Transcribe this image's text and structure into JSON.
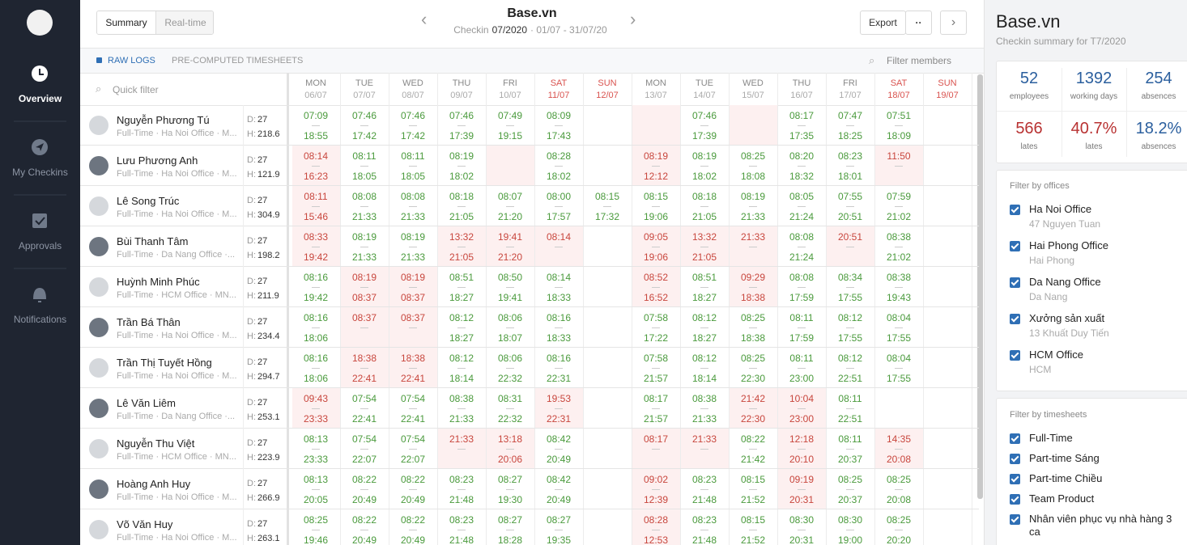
{
  "sidebar": {
    "nav": [
      "Overview",
      "My Checkins",
      "Approvals",
      "Notifications"
    ]
  },
  "header": {
    "toggle": [
      "Summary",
      "Real-time"
    ],
    "title": "Base.vn",
    "subtitle": {
      "prefix": "Checkin",
      "month": "07/2020",
      "range": "· 01/07 - 31/07/20"
    },
    "export": "Export",
    "more": "··"
  },
  "tabs": {
    "items": [
      "RAW LOGS",
      "PRE-COMPUTED TIMESHEETS"
    ],
    "search": "Filter members",
    "quick_filter": "Quick filter"
  },
  "status_colors": {
    "ok": "#4a9a3c",
    "late": "#c8463d"
  },
  "days": [
    {
      "day": "MON",
      "date": "06/07"
    },
    {
      "day": "TUE",
      "date": "07/07"
    },
    {
      "day": "WED",
      "date": "08/07"
    },
    {
      "day": "THU",
      "date": "09/07"
    },
    {
      "day": "FRI",
      "date": "10/07"
    },
    {
      "day": "SAT",
      "date": "11/07",
      "color": "#d9534f"
    },
    {
      "day": "SUN",
      "date": "12/07",
      "color": "#d9534f"
    },
    {
      "day": "MON",
      "date": "13/07"
    },
    {
      "day": "TUE",
      "date": "14/07"
    },
    {
      "day": "WED",
      "date": "15/07"
    },
    {
      "day": "THU",
      "date": "16/07"
    },
    {
      "day": "FRI",
      "date": "17/07"
    },
    {
      "day": "SAT",
      "date": "18/07",
      "color": "#d9534f"
    },
    {
      "day": "SUN",
      "date": "19/07",
      "color": "#d9534f"
    }
  ],
  "labels": {
    "d": "D:",
    "h": "H:"
  },
  "rows": [
    {
      "name": "Nguyễn Phương Tú",
      "sub": "Full-Time · Ha Noi Office · M...",
      "d": 27,
      "h": 218.6,
      "cells": [
        [
          "07:09",
          "18:55",
          "ok"
        ],
        [
          "07:46",
          "17:42",
          "ok"
        ],
        [
          "07:46",
          "17:42",
          "ok"
        ],
        [
          "07:46",
          "17:39",
          "ok"
        ],
        [
          "07:49",
          "19:15",
          "ok"
        ],
        [
          "08:09",
          "17:43",
          "ok"
        ],
        null,
        [
          null,
          null,
          "late"
        ],
        [
          "07:46",
          "17:39",
          "ok"
        ],
        [
          null,
          null,
          "late"
        ],
        [
          "08:17",
          "17:35",
          "ok"
        ],
        [
          "07:47",
          "18:25",
          "ok"
        ],
        [
          "07:51",
          "18:09",
          "ok"
        ],
        null
      ]
    },
    {
      "name": "Lưu Phương Anh",
      "sub": "Full-Time · Ha Noi Office · M...",
      "d": 27,
      "h": 121.9,
      "cells": [
        [
          "08:14",
          "16:23",
          "late"
        ],
        [
          "08:11",
          "18:05",
          "ok"
        ],
        [
          "08:11",
          "18:05",
          "ok"
        ],
        [
          "08:19",
          "18:02",
          "ok"
        ],
        [
          null,
          null,
          "late"
        ],
        [
          "08:28",
          "18:02",
          "ok"
        ],
        null,
        [
          "08:19",
          "12:12",
          "late"
        ],
        [
          "08:19",
          "18:02",
          "ok"
        ],
        [
          "08:25",
          "18:08",
          "ok"
        ],
        [
          "08:20",
          "18:32",
          "ok"
        ],
        [
          "08:23",
          "18:01",
          "ok"
        ],
        [
          "11:50",
          null,
          "late"
        ],
        null
      ]
    },
    {
      "name": "Lê Song Trúc",
      "sub": "Full-Time · Ha Noi Office · M...",
      "d": 27,
      "h": 304.9,
      "cells": [
        [
          "08:11",
          "15:46",
          "late"
        ],
        [
          "08:08",
          "21:33",
          "ok"
        ],
        [
          "08:08",
          "21:33",
          "ok"
        ],
        [
          "08:18",
          "21:05",
          "ok"
        ],
        [
          "08:07",
          "21:20",
          "ok"
        ],
        [
          "08:00",
          "17:57",
          "ok"
        ],
        [
          "08:15",
          "17:32",
          "ok"
        ],
        [
          "08:15",
          "19:06",
          "ok"
        ],
        [
          "08:18",
          "21:05",
          "ok"
        ],
        [
          "08:19",
          "21:33",
          "ok"
        ],
        [
          "08:05",
          "21:24",
          "ok"
        ],
        [
          "07:55",
          "20:51",
          "ok"
        ],
        [
          "07:59",
          "21:02",
          "ok"
        ],
        null
      ]
    },
    {
      "name": "Bùi Thanh Tâm",
      "sub": "Full-Time · Da Nang Office ·...",
      "d": 27,
      "h": 198.2,
      "cells": [
        [
          "08:33",
          "19:42",
          "late"
        ],
        [
          "08:19",
          "21:33",
          "ok"
        ],
        [
          "08:19",
          "21:33",
          "ok"
        ],
        [
          "13:32",
          "21:05",
          "late"
        ],
        [
          "19:41",
          "21:20",
          "late"
        ],
        [
          "08:14",
          null,
          "late"
        ],
        null,
        [
          "09:05",
          "19:06",
          "late"
        ],
        [
          "13:32",
          "21:05",
          "late"
        ],
        [
          "21:33",
          null,
          "late"
        ],
        [
          "08:08",
          "21:24",
          "ok"
        ],
        [
          "20:51",
          null,
          "late"
        ],
        [
          "08:38",
          "21:02",
          "ok"
        ],
        null
      ]
    },
    {
      "name": "Huỳnh Minh Phúc",
      "sub": "Full-Time · HCM Office · MN...",
      "d": 27,
      "h": 211.9,
      "cells": [
        [
          "08:16",
          "19:42",
          "ok"
        ],
        [
          "08:19",
          "08:37",
          "late"
        ],
        [
          "08:19",
          "08:37",
          "late"
        ],
        [
          "08:51",
          "18:27",
          "ok"
        ],
        [
          "08:50",
          "19:41",
          "ok"
        ],
        [
          "08:14",
          "18:33",
          "ok"
        ],
        null,
        [
          "08:52",
          "16:52",
          "late"
        ],
        [
          "08:51",
          "18:27",
          "ok"
        ],
        [
          "09:29",
          "18:38",
          "late"
        ],
        [
          "08:08",
          "17:59",
          "ok"
        ],
        [
          "08:34",
          "17:55",
          "ok"
        ],
        [
          "08:38",
          "19:43",
          "ok"
        ],
        null
      ]
    },
    {
      "name": "Trần Bá Thân",
      "sub": "Full-Time · Ha Noi Office · M...",
      "d": 27,
      "h": 234.4,
      "cells": [
        [
          "08:16",
          "18:06",
          "ok"
        ],
        [
          "08:37",
          null,
          "late"
        ],
        [
          "08:37",
          null,
          "late"
        ],
        [
          "08:12",
          "18:27",
          "ok"
        ],
        [
          "08:06",
          "18:07",
          "ok"
        ],
        [
          "08:16",
          "18:33",
          "ok"
        ],
        null,
        [
          "07:58",
          "17:22",
          "ok"
        ],
        [
          "08:12",
          "18:27",
          "ok"
        ],
        [
          "08:25",
          "18:38",
          "ok"
        ],
        [
          "08:11",
          "17:59",
          "ok"
        ],
        [
          "08:12",
          "17:55",
          "ok"
        ],
        [
          "08:04",
          "17:55",
          "ok"
        ],
        null
      ]
    },
    {
      "name": "Trần Thị Tuyết Hồng",
      "sub": "Full-Time · Ha Noi Office · M...",
      "d": 27,
      "h": 294.7,
      "cells": [
        [
          "08:16",
          "18:06",
          "ok"
        ],
        [
          "18:38",
          "22:41",
          "late"
        ],
        [
          "18:38",
          "22:41",
          "late"
        ],
        [
          "08:12",
          "18:14",
          "ok"
        ],
        [
          "08:06",
          "22:32",
          "ok"
        ],
        [
          "08:16",
          "22:31",
          "ok"
        ],
        null,
        [
          "07:58",
          "21:57",
          "ok"
        ],
        [
          "08:12",
          "18:14",
          "ok"
        ],
        [
          "08:25",
          "22:30",
          "ok"
        ],
        [
          "08:11",
          "23:00",
          "ok"
        ],
        [
          "08:12",
          "22:51",
          "ok"
        ],
        [
          "08:04",
          "17:55",
          "ok"
        ],
        null
      ]
    },
    {
      "name": "Lê Văn Liêm",
      "sub": "Full-Time · Da Nang Office ·...",
      "d": 27,
      "h": 253.1,
      "cells": [
        [
          "09:43",
          "23:33",
          "late"
        ],
        [
          "07:54",
          "22:41",
          "ok"
        ],
        [
          "07:54",
          "22:41",
          "ok"
        ],
        [
          "08:38",
          "21:33",
          "ok"
        ],
        [
          "08:31",
          "22:32",
          "ok"
        ],
        [
          "19:53",
          "22:31",
          "late"
        ],
        null,
        [
          "08:17",
          "21:57",
          "ok"
        ],
        [
          "08:38",
          "21:33",
          "ok"
        ],
        [
          "21:42",
          "22:30",
          "late"
        ],
        [
          "10:04",
          "23:00",
          "late"
        ],
        [
          "08:11",
          "22:51",
          "ok"
        ],
        null,
        null
      ]
    },
    {
      "name": "Nguyễn Thu Việt",
      "sub": "Full-Time · HCM Office · MN...",
      "d": 27,
      "h": 223.9,
      "cells": [
        [
          "08:13",
          "23:33",
          "ok"
        ],
        [
          "07:54",
          "22:07",
          "ok"
        ],
        [
          "07:54",
          "22:07",
          "ok"
        ],
        [
          "21:33",
          null,
          "late"
        ],
        [
          "13:18",
          "20:06",
          "late"
        ],
        [
          "08:42",
          "20:49",
          "ok"
        ],
        null,
        [
          "08:17",
          null,
          "late"
        ],
        [
          "21:33",
          null,
          "late"
        ],
        [
          "08:22",
          "21:42",
          "ok"
        ],
        [
          "12:18",
          "20:10",
          "late"
        ],
        [
          "08:11",
          "20:37",
          "ok"
        ],
        [
          "14:35",
          "20:08",
          "late"
        ],
        null
      ]
    },
    {
      "name": "Hoàng Anh Huy",
      "sub": "Full-Time · Ha Noi Office · M...",
      "d": 27,
      "h": 266.9,
      "cells": [
        [
          "08:13",
          "20:05",
          "ok"
        ],
        [
          "08:22",
          "20:49",
          "ok"
        ],
        [
          "08:22",
          "20:49",
          "ok"
        ],
        [
          "08:23",
          "21:48",
          "ok"
        ],
        [
          "08:27",
          "19:30",
          "ok"
        ],
        [
          "08:42",
          "20:49",
          "ok"
        ],
        null,
        [
          "09:02",
          "12:39",
          "late"
        ],
        [
          "08:23",
          "21:48",
          "ok"
        ],
        [
          "08:15",
          "21:52",
          "ok"
        ],
        [
          "09:19",
          "20:31",
          "late"
        ],
        [
          "08:25",
          "20:37",
          "ok"
        ],
        [
          "08:25",
          "20:08",
          "ok"
        ],
        null
      ]
    },
    {
      "name": "Võ Văn Huy",
      "sub": "Full-Time · Ha Noi Office · M...",
      "d": 27,
      "h": 263.1,
      "cells": [
        [
          "08:25",
          "19:46",
          "ok"
        ],
        [
          "08:22",
          "20:49",
          "ok"
        ],
        [
          "08:22",
          "20:49",
          "ok"
        ],
        [
          "08:23",
          "21:48",
          "ok"
        ],
        [
          "08:27",
          "18:28",
          "ok"
        ],
        [
          "08:27",
          "19:35",
          "ok"
        ],
        null,
        [
          "08:28",
          "12:53",
          "late"
        ],
        [
          "08:23",
          "21:48",
          "ok"
        ],
        [
          "08:15",
          "21:52",
          "ok"
        ],
        [
          "08:30",
          "20:31",
          "ok"
        ],
        [
          "08:30",
          "19:00",
          "ok"
        ],
        [
          "08:25",
          "20:20",
          "ok"
        ],
        null
      ]
    }
  ],
  "panel": {
    "title": "Base.vn",
    "subtitle": "Checkin summary for T7/2020",
    "stats": [
      {
        "value": "52",
        "label": "employees",
        "color": "#2b5f9e"
      },
      {
        "value": "1392",
        "label": "working days",
        "color": "#2b5f9e"
      },
      {
        "value": "254",
        "label": "absences",
        "color": "#2b5f9e"
      },
      {
        "value": "566",
        "label": "lates",
        "color": "#b83232"
      },
      {
        "value": "40.7%",
        "label": "lates",
        "color": "#b83232"
      },
      {
        "value": "18.2%",
        "label": "absences",
        "color": "#2b5f9e"
      }
    ],
    "offices": {
      "heading": "Filter by offices",
      "items": [
        {
          "name": "Ha Noi Office",
          "address": "47 Nguyen Tuan"
        },
        {
          "name": "Hai Phong Office",
          "address": "Hai Phong"
        },
        {
          "name": "Da Nang Office",
          "address": "Da Nang"
        },
        {
          "name": "Xưởng sản xuất",
          "address": "13 Khuất Duy Tiến"
        },
        {
          "name": "HCM Office",
          "address": "HCM"
        }
      ]
    },
    "timesheets": {
      "heading": "Filter by timesheets",
      "items": [
        "Full-Time",
        "Part-time Sáng",
        "Part-time Chiều",
        "Team Product",
        "Nhân viên phục vụ nhà hàng 3 ca"
      ]
    }
  }
}
